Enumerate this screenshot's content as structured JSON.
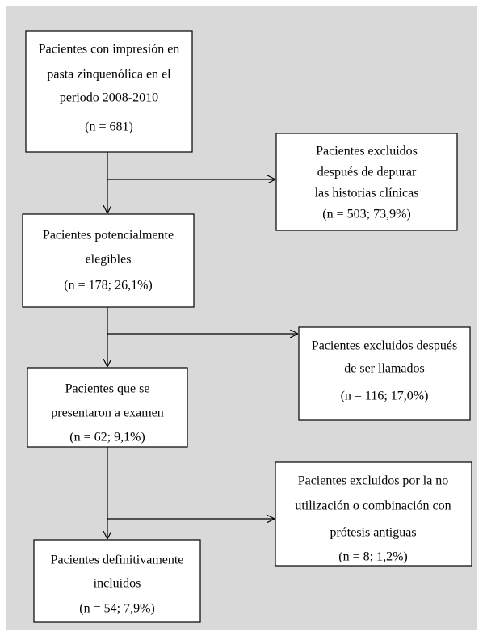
{
  "boxes": [
    {
      "lines": [
        "Pacientes con impresión en",
        "pasta zinquenólica en el",
        "periodo 2008-2010",
        "(n = 681)"
      ]
    },
    {
      "lines": [
        "Pacientes excluidos",
        "después de depurar",
        "las historias clínicas",
        "(n = 503; 73,9%)"
      ]
    },
    {
      "lines": [
        "Pacientes potencialmente",
        "elegibles",
        "(n = 178; 26,1%)"
      ]
    },
    {
      "lines": [
        "Pacientes excluidos después",
        "de ser llamados",
        "(n = 116; 17,0%)"
      ]
    },
    {
      "lines": [
        "Pacientes que se",
        "presentaron a examen",
        "(n = 62; 9,1%)"
      ]
    },
    {
      "lines": [
        "Pacientes excluidos por la no",
        "utilización o combinación con",
        "prótesis antiguas",
        "(n = 8; 1,2%)"
      ]
    },
    {
      "lines": [
        "Pacientes definitivamente",
        "incluidos",
        "(n = 54; 7,9%)"
      ]
    }
  ]
}
